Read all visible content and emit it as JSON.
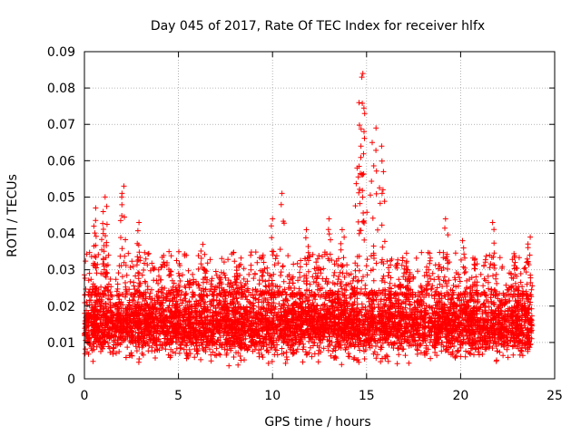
{
  "chart_data": {
    "type": "scatter",
    "title": "Day 045 of 2017, Rate Of TEC Index for receiver hlfx",
    "xlabel": "GPS time / hours",
    "ylabel": "ROTI / TECUs",
    "xlim": [
      0,
      25
    ],
    "ylim": [
      0,
      0.09
    ],
    "x_ticks": [
      0,
      5,
      10,
      15,
      20,
      25
    ],
    "x_tick_labels": [
      "0",
      "5",
      "10",
      "15",
      "20",
      "25"
    ],
    "y_ticks": [
      0,
      0.01,
      0.02,
      0.03,
      0.04,
      0.05,
      0.06,
      0.07,
      0.08,
      0.09
    ],
    "y_tick_labels": [
      "0",
      "0.01",
      "0.02",
      "0.03",
      "0.04",
      "0.05",
      "0.06",
      "0.07",
      "0.08",
      "0.09"
    ],
    "grid": true,
    "marker": "+",
    "marker_color": "#ff0000",
    "data_extent": {
      "x_min": 0,
      "x_max": 23.8
    },
    "series": [
      {
        "name": "ROTI",
        "notable_points": [
          {
            "x": 14.8,
            "y": 0.084
          },
          {
            "x": 14.75,
            "y": 0.083
          },
          {
            "x": 14.6,
            "y": 0.076
          },
          {
            "x": 14.9,
            "y": 0.073
          },
          {
            "x": 15.5,
            "y": 0.069
          },
          {
            "x": 15.3,
            "y": 0.065
          },
          {
            "x": 15.8,
            "y": 0.064
          },
          {
            "x": 14.7,
            "y": 0.064
          },
          {
            "x": 14.5,
            "y": 0.058
          },
          {
            "x": 15.9,
            "y": 0.057
          },
          {
            "x": 2.1,
            "y": 0.053
          },
          {
            "x": 2.0,
            "y": 0.051
          },
          {
            "x": 10.5,
            "y": 0.051
          },
          {
            "x": 1.1,
            "y": 0.05
          },
          {
            "x": 0.6,
            "y": 0.047
          },
          {
            "x": 1.0,
            "y": 0.046
          },
          {
            "x": 19.2,
            "y": 0.044
          },
          {
            "x": 10.0,
            "y": 0.044
          },
          {
            "x": 13.0,
            "y": 0.044
          },
          {
            "x": 21.7,
            "y": 0.043
          },
          {
            "x": 2.9,
            "y": 0.043
          },
          {
            "x": 0.5,
            "y": 0.042
          },
          {
            "x": 11.8,
            "y": 0.041
          },
          {
            "x": 13.7,
            "y": 0.041
          },
          {
            "x": 1.0,
            "y": 0.04
          },
          {
            "x": 23.7,
            "y": 0.039
          },
          {
            "x": 6.3,
            "y": 0.037
          },
          {
            "x": 20.1,
            "y": 0.038
          },
          {
            "x": 4.5,
            "y": 0.035
          },
          {
            "x": 9.5,
            "y": 0.034
          },
          {
            "x": 22.9,
            "y": 0.032
          },
          {
            "x": 12.4,
            "y": 0.033
          },
          {
            "x": 17.2,
            "y": 0.03
          },
          {
            "x": 8.1,
            "y": 0.029
          },
          {
            "x": 7.2,
            "y": 0.028
          },
          {
            "x": 5.6,
            "y": 0.027
          },
          {
            "x": 18.3,
            "y": 0.03
          },
          {
            "x": 16.8,
            "y": 0.026
          }
        ],
        "bulk_band": {
          "y_low": 0.003,
          "y_high": 0.025,
          "typical": 0.012
        }
      }
    ]
  }
}
